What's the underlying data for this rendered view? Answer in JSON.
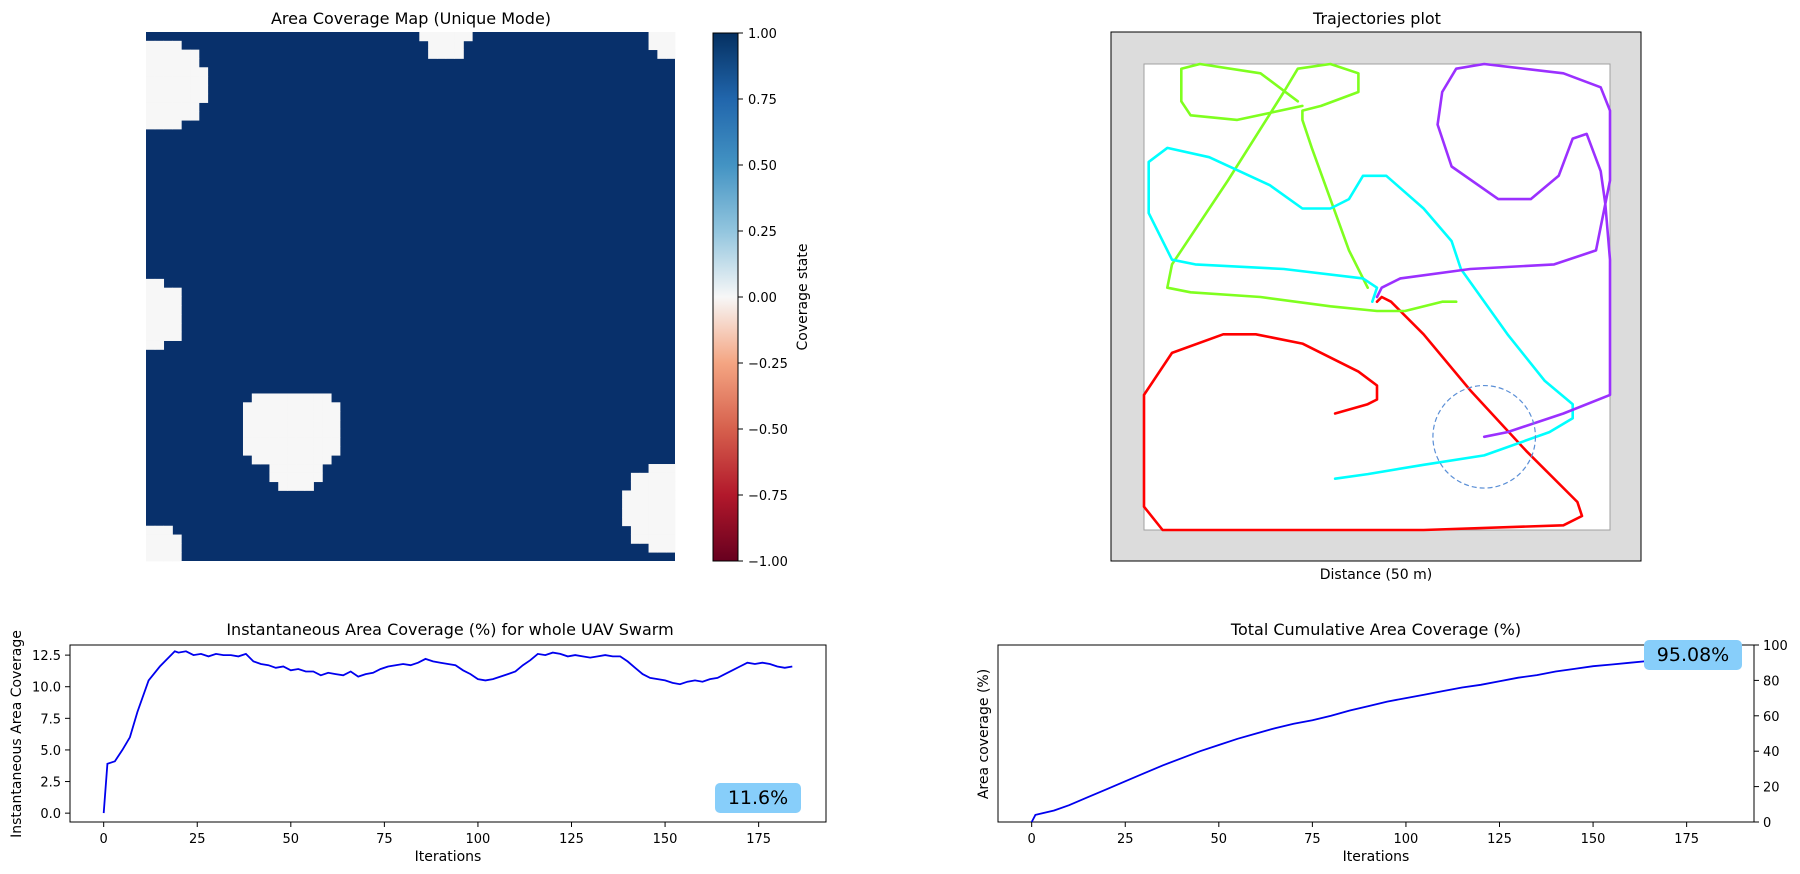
{
  "chart_data": [
    {
      "type": "heatmap",
      "title": "Area Coverage Map (Unique Mode)",
      "colorbar": {
        "label": "Coverage state",
        "range": [
          -1.0,
          1.0
        ],
        "ticks": [
          "1.00",
          "0.75",
          "0.50",
          "0.25",
          "0.00",
          "−0.25",
          "−0.50",
          "−0.75",
          "−1.00"
        ],
        "tick_values": [
          1,
          0.75,
          0.5,
          0.25,
          0,
          -0.25,
          -0.5,
          -0.75,
          -1
        ]
      },
      "grid_size": 60,
      "covered_value": 1.0,
      "uncovered_value": 0.0,
      "uncovered_regions": [
        {
          "cx": 2,
          "cy": 6,
          "r": 5
        },
        {
          "cx": 34,
          "cy": 0.5,
          "r": 2.6
        },
        {
          "cx": 59.5,
          "cy": 0.5,
          "r": 2.4
        },
        {
          "cx": 0.5,
          "cy": 32,
          "r": 4
        },
        {
          "cx": 15,
          "cy": 45,
          "r": 4.5
        },
        {
          "cx": 18,
          "cy": 45,
          "r": 4.5
        },
        {
          "cx": 17,
          "cy": 49,
          "r": 3.5
        },
        {
          "cx": 1,
          "cy": 58.5,
          "r": 3
        },
        {
          "cx": 59,
          "cy": 54,
          "r": 5
        }
      ],
      "colors": {
        "covered": "#08306b",
        "uncovered": "#f7f7f7"
      }
    },
    {
      "type": "line",
      "title": "Trajectories plot",
      "xlabel": "Distance  (50 m)",
      "sensor_circle": {
        "cx": 0.73,
        "cy": 0.8,
        "r": 0.11,
        "color": "#5b8fd6"
      },
      "series": [
        {
          "color": "#ff0000",
          "points": [
            [
              0.41,
              0.75
            ],
            [
              0.48,
              0.73
            ],
            [
              0.5,
              0.72
            ],
            [
              0.5,
              0.69
            ],
            [
              0.46,
              0.66
            ],
            [
              0.34,
              0.6
            ],
            [
              0.24,
              0.58
            ],
            [
              0.17,
              0.58
            ],
            [
              0.06,
              0.62
            ],
            [
              0,
              0.71
            ],
            [
              0,
              0.95
            ],
            [
              0.04,
              1.0
            ],
            [
              0.3,
              1.0
            ],
            [
              0.6,
              1.0
            ],
            [
              0.9,
              0.99
            ],
            [
              0.94,
              0.97
            ],
            [
              0.93,
              0.94
            ],
            [
              0.82,
              0.83
            ],
            [
              0.7,
              0.7
            ],
            [
              0.6,
              0.58
            ],
            [
              0.53,
              0.51
            ],
            [
              0.51,
              0.5
            ],
            [
              0.5,
              0.51
            ]
          ]
        },
        {
          "color": "#7fff1f",
          "points": [
            [
              0.67,
              0.51
            ],
            [
              0.64,
              0.51
            ],
            [
              0.56,
              0.53
            ],
            [
              0.5,
              0.53
            ],
            [
              0.4,
              0.52
            ],
            [
              0.25,
              0.5
            ],
            [
              0.1,
              0.49
            ],
            [
              0.05,
              0.48
            ],
            [
              0.06,
              0.43
            ],
            [
              0.18,
              0.25
            ],
            [
              0.3,
              0.06
            ],
            [
              0.33,
              0.01
            ],
            [
              0.4,
              0
            ],
            [
              0.46,
              0.02
            ],
            [
              0.46,
              0.06
            ],
            [
              0.38,
              0.09
            ],
            [
              0.34,
              0.1
            ],
            [
              0.34,
              0.12
            ],
            [
              0.36,
              0.18
            ],
            [
              0.44,
              0.4
            ],
            [
              0.48,
              0.48
            ]
          ]
        },
        {
          "color": "#7fff1f",
          "points": [
            [
              0.34,
              0.09
            ],
            [
              0.2,
              0.12
            ],
            [
              0.1,
              0.11
            ],
            [
              0.08,
              0.08
            ],
            [
              0.08,
              0.01
            ],
            [
              0.12,
              0
            ],
            [
              0.25,
              0.02
            ],
            [
              0.33,
              0.08
            ]
          ]
        },
        {
          "color": "#00ffff",
          "points": [
            [
              0.41,
              0.89
            ],
            [
              0.48,
              0.88
            ],
            [
              0.6,
              0.86
            ],
            [
              0.73,
              0.84
            ],
            [
              0.87,
              0.79
            ],
            [
              0.92,
              0.76
            ],
            [
              0.92,
              0.73
            ],
            [
              0.86,
              0.68
            ],
            [
              0.78,
              0.58
            ],
            [
              0.68,
              0.44
            ],
            [
              0.66,
              0.38
            ],
            [
              0.6,
              0.31
            ],
            [
              0.52,
              0.24
            ],
            [
              0.47,
              0.24
            ],
            [
              0.44,
              0.29
            ],
            [
              0.4,
              0.31
            ],
            [
              0.34,
              0.31
            ],
            [
              0.27,
              0.26
            ],
            [
              0.14,
              0.2
            ],
            [
              0.05,
              0.18
            ],
            [
              0.01,
              0.21
            ],
            [
              0.01,
              0.32
            ],
            [
              0.06,
              0.42
            ],
            [
              0.11,
              0.43
            ],
            [
              0.3,
              0.44
            ],
            [
              0.47,
              0.46
            ],
            [
              0.5,
              0.48
            ],
            [
              0.49,
              0.51
            ]
          ]
        },
        {
          "color": "#9b30ff",
          "points": [
            [
              0.73,
              0.8
            ],
            [
              0.78,
              0.79
            ],
            [
              0.9,
              0.75
            ],
            [
              1,
              0.71
            ],
            [
              1,
              0.42
            ],
            [
              0.99,
              0.3
            ],
            [
              0.98,
              0.23
            ],
            [
              0.95,
              0.15
            ],
            [
              0.92,
              0.16
            ],
            [
              0.89,
              0.24
            ],
            [
              0.83,
              0.29
            ],
            [
              0.76,
              0.29
            ],
            [
              0.66,
              0.22
            ],
            [
              0.63,
              0.13
            ],
            [
              0.64,
              0.06
            ],
            [
              0.67,
              0.01
            ],
            [
              0.73,
              0
            ],
            [
              0.9,
              0.02
            ],
            [
              0.98,
              0.05
            ],
            [
              1,
              0.1
            ],
            [
              1,
              0.25
            ],
            [
              0.97,
              0.4
            ],
            [
              0.88,
              0.43
            ],
            [
              0.7,
              0.44
            ],
            [
              0.55,
              0.46
            ],
            [
              0.51,
              0.48
            ],
            [
              0.5,
              0.5
            ]
          ]
        }
      ]
    },
    {
      "type": "line",
      "title": "Instantaneous Area Coverage (%) for whole UAV Swarm",
      "xlabel": "Iterations",
      "ylabel": "Instantaneous Area Coverage",
      "xlim": [
        -9,
        193
      ],
      "ylim": [
        -0.7,
        13.3
      ],
      "xticks": [
        0,
        25,
        50,
        75,
        100,
        125,
        150,
        175
      ],
      "yticks": [
        0.0,
        2.5,
        5.0,
        7.5,
        10.0,
        12.5
      ],
      "ytick_labels": [
        "0.0",
        "2.5",
        "5.0",
        "7.5",
        "10.0",
        "12.5"
      ],
      "badge": "11.6%",
      "series": [
        {
          "color": "#0000ee",
          "x": [
            0,
            1,
            3,
            5,
            7,
            9,
            12,
            15,
            18,
            19,
            20,
            22,
            24,
            26,
            28,
            30,
            32,
            34,
            36,
            38,
            40,
            42,
            44,
            46,
            48,
            50,
            52,
            54,
            56,
            58,
            60,
            62,
            64,
            66,
            68,
            70,
            72,
            74,
            76,
            78,
            80,
            82,
            84,
            86,
            88,
            90,
            92,
            94,
            96,
            98,
            100,
            102,
            104,
            106,
            108,
            110,
            112,
            114,
            116,
            118,
            120,
            122,
            124,
            126,
            128,
            130,
            132,
            134,
            136,
            138,
            140,
            142,
            144,
            146,
            148,
            150,
            152,
            154,
            156,
            158,
            160,
            162,
            164,
            166,
            168,
            170,
            172,
            174,
            176,
            178,
            180,
            182,
            184
          ],
          "y": [
            0,
            3.9,
            4.1,
            5,
            6,
            8,
            10.5,
            11.6,
            12.5,
            12.8,
            12.7,
            12.8,
            12.5,
            12.6,
            12.4,
            12.6,
            12.5,
            12.5,
            12.4,
            12.6,
            12.0,
            11.8,
            11.7,
            11.5,
            11.6,
            11.3,
            11.4,
            11.2,
            11.2,
            10.9,
            11.1,
            11.0,
            10.9,
            11.2,
            10.8,
            11.0,
            11.1,
            11.4,
            11.6,
            11.7,
            11.8,
            11.7,
            11.9,
            12.2,
            12.0,
            11.9,
            11.8,
            11.7,
            11.3,
            11.0,
            10.6,
            10.5,
            10.6,
            10.8,
            11.0,
            11.2,
            11.7,
            12.1,
            12.6,
            12.5,
            12.7,
            12.6,
            12.4,
            12.5,
            12.4,
            12.3,
            12.4,
            12.5,
            12.4,
            12.4,
            12.0,
            11.5,
            11.0,
            10.7,
            10.6,
            10.5,
            10.3,
            10.2,
            10.4,
            10.5,
            10.4,
            10.6,
            10.7,
            11.0,
            11.3,
            11.6,
            11.9,
            11.8,
            11.9,
            11.8,
            11.6,
            11.5,
            11.6
          ]
        }
      ]
    },
    {
      "type": "line",
      "title": "Total Cumulative Area Coverage (%)",
      "xlabel": "Iterations",
      "ylabel": "Area coverage (%)",
      "xlim": [
        -9,
        193
      ],
      "ylim": [
        0,
        100
      ],
      "xticks": [
        0,
        25,
        50,
        75,
        100,
        125,
        150,
        175
      ],
      "yticks": [
        0,
        20,
        40,
        60,
        80,
        100
      ],
      "badge": "95.08%",
      "series": [
        {
          "color": "#0000ee",
          "x": [
            0,
            1,
            3,
            6,
            10,
            15,
            20,
            25,
            30,
            35,
            40,
            45,
            50,
            55,
            60,
            65,
            70,
            75,
            80,
            85,
            90,
            95,
            100,
            105,
            110,
            115,
            120,
            125,
            130,
            135,
            140,
            145,
            150,
            155,
            160,
            165,
            170,
            175,
            180,
            184
          ],
          "y": [
            0,
            4,
            5,
            6.5,
            9.5,
            14,
            18.5,
            23,
            27.5,
            32,
            36,
            40,
            43.5,
            47,
            50,
            53,
            55.5,
            57.5,
            60,
            63,
            65.5,
            68,
            70,
            72,
            74,
            76,
            77.5,
            79.5,
            81.5,
            83,
            85,
            86.5,
            88,
            89,
            90,
            91,
            92,
            93,
            94,
            95.08
          ]
        }
      ]
    }
  ]
}
